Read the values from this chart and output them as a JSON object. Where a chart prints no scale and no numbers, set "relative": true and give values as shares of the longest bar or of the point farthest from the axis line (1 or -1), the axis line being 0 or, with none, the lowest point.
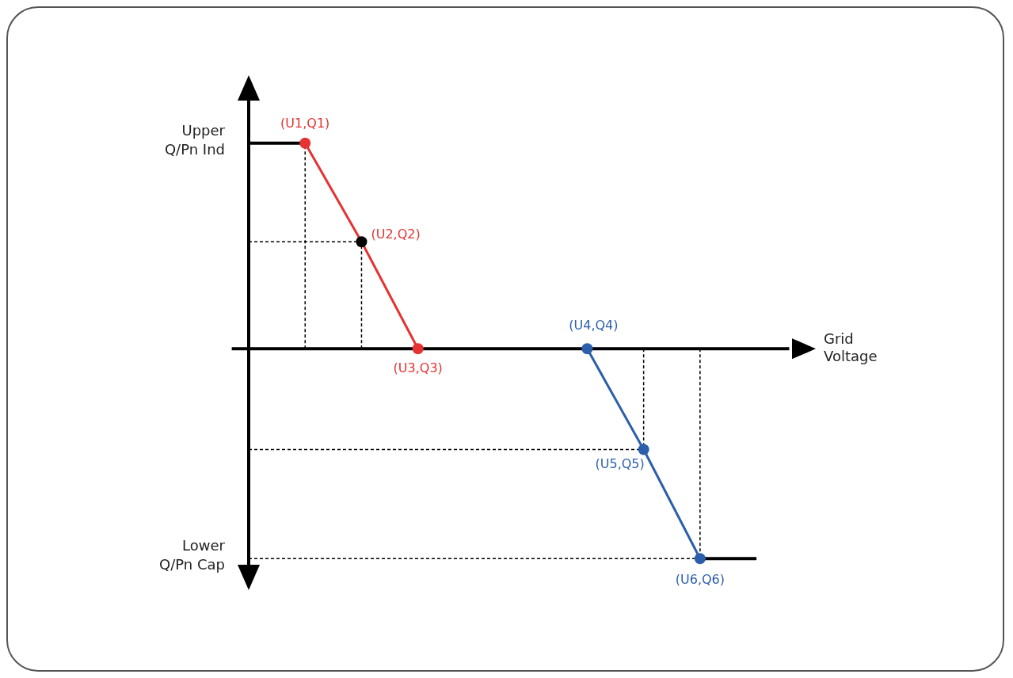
{
  "chart_data": {
    "type": "line",
    "relative": true,
    "xlabel": "Grid Voltage",
    "marker": "circle",
    "categories": [
      null,
      null,
      null,
      null,
      null,
      null,
      null,
      null,
      null,
      null
    ],
    "series": [
      {
        "color": "#000000",
        "marker": "none",
        "values": [
          0.98,
          0.98,
          null,
          null,
          null,
          null,
          null,
          null,
          null,
          null
        ]
      },
      {
        "color": "#e53232",
        "values": [
          null,
          0.98,
          0.51,
          0,
          null,
          null,
          null,
          null,
          null,
          null
        ],
        "colors": [
          null,
          "#e53232",
          "#000000",
          "#e53232",
          null,
          null,
          null,
          null,
          null,
          null
        ]
      },
      {
        "color": "#2b5eab",
        "values": [
          null,
          null,
          null,
          null,
          null,
          null,
          0,
          -0.48,
          -1,
          null
        ]
      },
      {
        "color": "#000000",
        "marker": "none",
        "values": [
          null,
          null,
          null,
          null,
          null,
          null,
          null,
          null,
          -1,
          -1
        ]
      }
    ],
    "annotations": [
      "(U1,Q1)",
      "(U2,Q2)",
      "(U3,Q3)",
      "(U4,Q4)",
      "(U5,Q5)",
      "(U6,Q6)",
      "Upper Q/Pn Ind",
      "Lower Q/Pn Cap"
    ]
  }
}
